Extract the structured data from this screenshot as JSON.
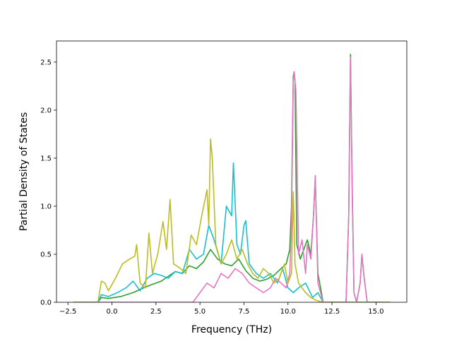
{
  "chart_data": {
    "type": "line",
    "title": "",
    "xlabel": "Frequency (THz)",
    "ylabel": "Partial Density of States",
    "xlim": [
      -3.15,
      16.75
    ],
    "ylim": [
      0,
      2.72
    ],
    "xticks": [
      -2.5,
      0.0,
      2.5,
      5.0,
      7.5,
      10.0,
      12.5,
      15.0
    ],
    "xtick_labels": [
      "−2.5",
      "0.0",
      "2.5",
      "5.0",
      "7.5",
      "10.0",
      "12.5",
      "15.0"
    ],
    "yticks": [
      0.0,
      0.5,
      1.0,
      1.5,
      2.0,
      2.5
    ],
    "ytick_labels": [
      "0.0",
      "0.5",
      "1.0",
      "1.5",
      "2.0",
      "2.5"
    ],
    "grid": false,
    "legend": "none",
    "series": [
      {
        "color": "#2ca02c",
        "x": [
          -2.2,
          -0.8,
          -0.6,
          -0.2,
          0.5,
          1.2,
          1.8,
          2.2,
          2.8,
          3.2,
          3.6,
          4.0,
          4.4,
          4.8,
          5.2,
          5.6,
          6.0,
          6.4,
          6.8,
          7.2,
          7.6,
          8.0,
          8.4,
          8.8,
          9.2,
          9.6,
          9.9,
          10.1,
          10.2,
          10.3,
          10.35,
          10.4,
          10.5,
          10.7,
          10.9,
          11.1,
          11.3,
          11.45,
          11.55,
          11.7,
          12.0,
          13.3,
          13.45,
          13.55,
          13.65,
          13.75,
          13.9,
          14.1,
          14.2,
          14.3,
          14.5,
          15.8
        ],
        "y": [
          0.0,
          0.0,
          0.05,
          0.04,
          0.06,
          0.1,
          0.15,
          0.18,
          0.22,
          0.27,
          0.32,
          0.3,
          0.38,
          0.35,
          0.42,
          0.55,
          0.45,
          0.4,
          0.38,
          0.45,
          0.33,
          0.25,
          0.22,
          0.24,
          0.28,
          0.35,
          0.4,
          0.55,
          1.0,
          2.35,
          2.4,
          2.3,
          0.6,
          0.45,
          0.55,
          0.65,
          0.5,
          0.9,
          1.3,
          0.3,
          0.0,
          0.0,
          0.9,
          2.58,
          1.2,
          0.1,
          0.0,
          0.2,
          0.5,
          0.3,
          0.0,
          0.0
        ]
      },
      {
        "color": "#17becf",
        "x": [
          -2.2,
          -0.8,
          -0.6,
          -0.2,
          0.3,
          0.8,
          1.2,
          1.6,
          2.0,
          2.4,
          2.8,
          3.2,
          3.6,
          4.0,
          4.4,
          4.8,
          5.2,
          5.5,
          5.8,
          6.2,
          6.5,
          6.8,
          6.9,
          7.1,
          7.3,
          7.5,
          7.6,
          7.8,
          8.2,
          8.6,
          9.0,
          9.4,
          9.7,
          10.0,
          10.3,
          10.6,
          11.0,
          11.4,
          11.7,
          12.0,
          15.8
        ],
        "y": [
          0.0,
          0.0,
          0.08,
          0.06,
          0.1,
          0.15,
          0.22,
          0.12,
          0.25,
          0.3,
          0.28,
          0.25,
          0.32,
          0.3,
          0.55,
          0.45,
          0.5,
          0.8,
          0.65,
          0.4,
          1.0,
          0.9,
          1.45,
          0.6,
          0.5,
          0.8,
          0.85,
          0.4,
          0.3,
          0.25,
          0.3,
          0.2,
          0.35,
          0.15,
          0.1,
          0.15,
          0.2,
          0.05,
          0.1,
          0.0,
          0.0
        ]
      },
      {
        "color": "#e377c2",
        "x": [
          -2.2,
          4.6,
          5.0,
          5.4,
          5.8,
          6.2,
          6.6,
          7.0,
          7.4,
          7.8,
          8.2,
          8.6,
          9.0,
          9.3,
          9.6,
          9.9,
          10.1,
          10.2,
          10.3,
          10.35,
          10.45,
          10.6,
          10.8,
          11.0,
          11.1,
          11.3,
          11.45,
          11.55,
          11.7,
          12.0,
          13.3,
          13.45,
          13.55,
          13.65,
          13.75,
          13.9,
          14.1,
          14.2,
          14.3,
          14.5,
          15.8
        ],
        "y": [
          0.0,
          0.0,
          0.1,
          0.2,
          0.15,
          0.3,
          0.25,
          0.35,
          0.3,
          0.2,
          0.15,
          0.1,
          0.15,
          0.25,
          0.2,
          0.15,
          0.3,
          0.8,
          2.3,
          2.4,
          2.2,
          0.5,
          0.65,
          0.3,
          0.6,
          0.45,
          0.9,
          1.32,
          0.2,
          0.0,
          0.0,
          0.9,
          2.55,
          1.1,
          0.1,
          0.0,
          0.2,
          0.5,
          0.3,
          0.0,
          0.0
        ]
      },
      {
        "color": "#bcbd22",
        "x": [
          -2.2,
          -0.8,
          -0.6,
          -0.4,
          -0.2,
          0.2,
          0.6,
          1.0,
          1.3,
          1.4,
          1.6,
          1.9,
          2.1,
          2.3,
          2.6,
          2.9,
          3.1,
          3.3,
          3.5,
          3.9,
          4.2,
          4.5,
          4.8,
          5.1,
          5.4,
          5.5,
          5.6,
          5.7,
          5.9,
          6.2,
          6.5,
          6.8,
          7.1,
          7.4,
          7.7,
          8.0,
          8.3,
          8.6,
          8.9,
          9.2,
          9.5,
          9.8,
          10.0,
          10.2,
          10.3,
          10.4,
          10.6,
          11.0,
          11.3,
          11.6,
          12.0,
          15.8
        ],
        "y": [
          0.0,
          0.0,
          0.22,
          0.2,
          0.12,
          0.25,
          0.4,
          0.45,
          0.48,
          0.6,
          0.2,
          0.15,
          0.72,
          0.3,
          0.5,
          0.84,
          0.55,
          1.07,
          0.4,
          0.35,
          0.3,
          0.7,
          0.6,
          0.9,
          1.17,
          0.8,
          1.7,
          1.5,
          0.6,
          0.4,
          0.5,
          0.65,
          0.45,
          0.55,
          0.4,
          0.3,
          0.25,
          0.35,
          0.3,
          0.2,
          0.25,
          0.4,
          0.2,
          0.3,
          1.15,
          0.4,
          0.2,
          0.1,
          0.05,
          0.02,
          0.0,
          0.0
        ]
      }
    ]
  }
}
